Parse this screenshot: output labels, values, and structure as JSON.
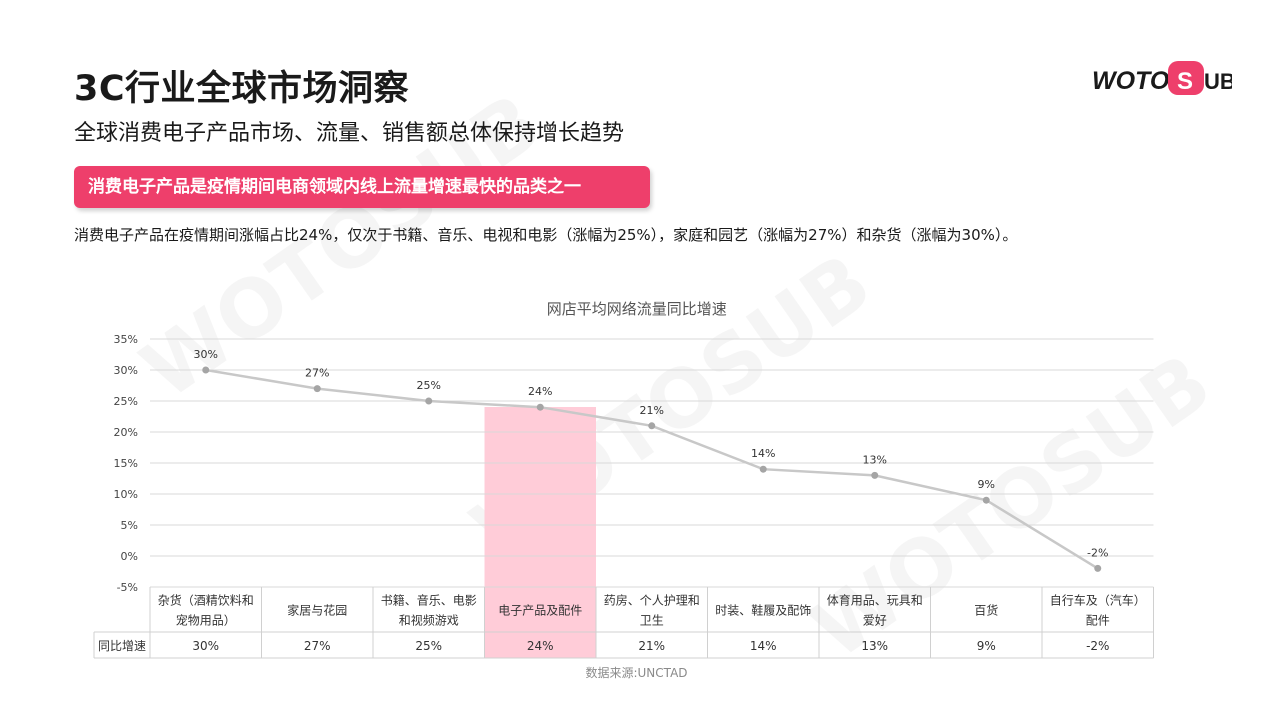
{
  "header": {
    "title": "3C行业全球市场洞察",
    "subtitle": "全球消费电子产品市场、流量、销售额总体保持增长趋势",
    "highlight": "消费电子产品是疫情期间电商领域内线上流量增速最快的品类之一",
    "description": "消费电子产品在疫情期间涨幅占比24%，仅次于书籍、音乐、电视和电影（涨幅为25%），家庭和园艺（涨幅为27%）和杂货（涨幅为30%）。"
  },
  "logo": {
    "text_left": "WOTO",
    "text_right": "UB",
    "mark": "S",
    "brand_color": "#ee3f6b"
  },
  "watermark": "WOTOSUB",
  "source": "数据来源:UNCTAD",
  "chart_data": {
    "type": "line",
    "title": "网店平均网络流量同比增速",
    "categories": [
      [
        "杂货（酒精饮料和",
        "宠物用品）"
      ],
      [
        "家居与花园"
      ],
      [
        "书籍、音乐、电影",
        "和视频游戏"
      ],
      [
        "电子产品及配件"
      ],
      [
        "药房、个人护理和",
        "卫生"
      ],
      [
        "时装、鞋履及配饰"
      ],
      [
        "体育用品、玩具和",
        "爱好"
      ],
      [
        "百货"
      ],
      [
        "自行车及（汽车）",
        "配件"
      ]
    ],
    "values": [
      30,
      27,
      25,
      24,
      21,
      14,
      13,
      9,
      -2
    ],
    "data_labels": [
      "30%",
      "27%",
      "25%",
      "24%",
      "21%",
      "14%",
      "13%",
      "9%",
      "-2%"
    ],
    "table_row_label": "同比增速",
    "table_row": [
      "30%",
      "27%",
      "25%",
      "24%",
      "21%",
      "14%",
      "13%",
      "9%",
      "-2%"
    ],
    "y_ticks": [
      "35%",
      "30%",
      "25%",
      "20%",
      "15%",
      "10%",
      "5%",
      "0%",
      "-5%"
    ],
    "y_tick_values": [
      35,
      30,
      25,
      20,
      15,
      10,
      5,
      0,
      -5
    ],
    "ylim": [
      -5,
      35
    ],
    "highlight_index": 3,
    "colors": {
      "line": "#c8c8c8",
      "point": "#a5a5a5",
      "highlight": "#ffccd8",
      "grid": "#d9d9d9"
    },
    "grid": true
  }
}
